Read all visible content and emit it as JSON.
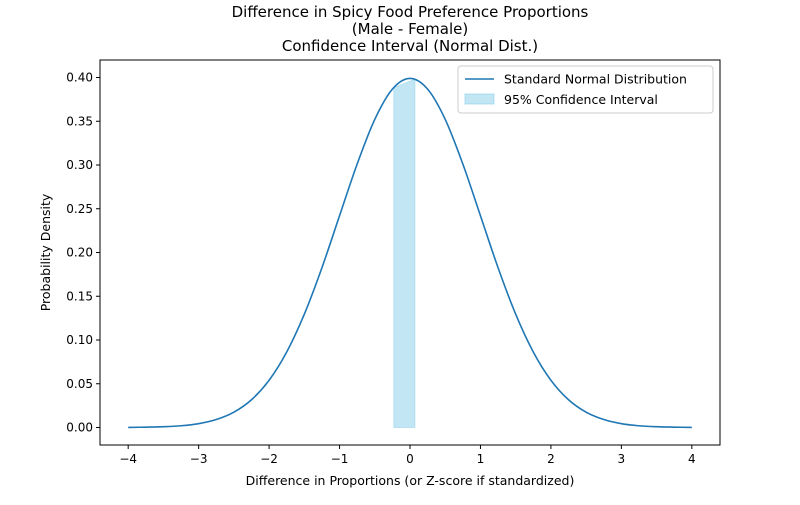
{
  "chart_data": {
    "type": "line",
    "title_lines": [
      "Difference in Spicy Food Preference Proportions",
      "(Male - Female)",
      "Confidence Interval (Normal Dist.)"
    ],
    "xlabel": "Difference in Proportions (or Z-score if standardized)",
    "ylabel": "Probability Density",
    "xlim": [
      -4.4,
      4.4
    ],
    "ylim": [
      -0.02,
      0.42
    ],
    "grid": false,
    "legend_position": "top-right",
    "x_ticks": [
      -4,
      -3,
      -2,
      -1,
      0,
      1,
      2,
      3,
      4
    ],
    "x_tick_labels": [
      "−4",
      "−3",
      "−2",
      "−1",
      "0",
      "1",
      "2",
      "3",
      "4"
    ],
    "y_ticks": [
      0.0,
      0.05,
      0.1,
      0.15,
      0.2,
      0.25,
      0.3,
      0.35,
      0.4
    ],
    "y_tick_labels": [
      "0.00",
      "0.05",
      "0.10",
      "0.15",
      "0.20",
      "0.25",
      "0.30",
      "0.35",
      "0.40"
    ],
    "series": [
      {
        "name": "Standard Normal Distribution",
        "kind": "line",
        "color": "#1f77b4",
        "x": [
          -4.0,
          -3.75,
          -3.5,
          -3.25,
          -3.0,
          -2.75,
          -2.5,
          -2.25,
          -2.0,
          -1.75,
          -1.5,
          -1.25,
          -1.0,
          -0.75,
          -0.5,
          -0.25,
          0.0,
          0.25,
          0.5,
          0.75,
          1.0,
          1.25,
          1.5,
          1.75,
          2.0,
          2.25,
          2.5,
          2.75,
          3.0,
          3.25,
          3.5,
          3.75,
          4.0
        ],
        "y": [
          0.0001,
          0.0004,
          0.0009,
          0.002,
          0.0044,
          0.0091,
          0.0175,
          0.0317,
          0.054,
          0.0863,
          0.1295,
          0.1826,
          0.242,
          0.3011,
          0.3521,
          0.3867,
          0.3989,
          0.3867,
          0.3521,
          0.3011,
          0.242,
          0.1826,
          0.1295,
          0.0863,
          0.054,
          0.0317,
          0.0175,
          0.0091,
          0.0044,
          0.002,
          0.0009,
          0.0004,
          0.0001
        ]
      },
      {
        "name": "95% Confidence Interval",
        "kind": "area",
        "color": "#87ceeb",
        "x": [
          -0.23,
          0.07
        ],
        "y_top": [
          0.3885,
          0.3979
        ],
        "y_bottom": [
          0.0,
          0.0
        ]
      }
    ]
  }
}
